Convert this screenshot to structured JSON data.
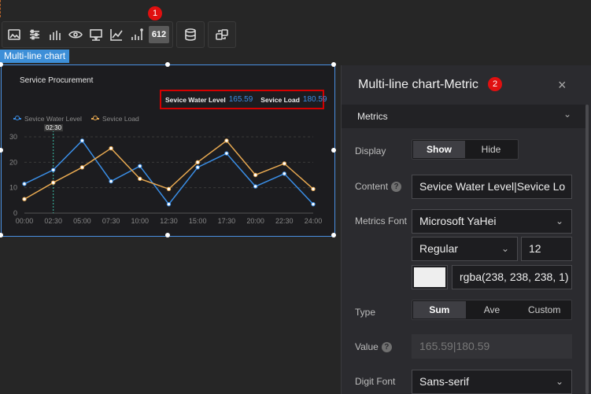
{
  "toolbar": {
    "icons": [
      "image-icon",
      "sliders-icon",
      "bar-chart-icon",
      "eye-icon",
      "tooltip-icon",
      "axis-icon",
      "metric-bars-icon",
      "metric-number-icon",
      "database-icon",
      "interaction-icon"
    ],
    "active_label": "612",
    "badge1": "1"
  },
  "chart": {
    "tag": "Multi-line chart",
    "title": "Service Procurement",
    "metric1_label": "Sevice Water Level",
    "metric1_value": "165.59",
    "metric2_label": "Sevice Load",
    "metric2_value": "180.59",
    "tooltip_time": "02:30"
  },
  "chart_data": {
    "type": "line",
    "title": "Service Procurement",
    "x": [
      "00:00",
      "02:30",
      "05:00",
      "07:30",
      "10:00",
      "12:30",
      "15:00",
      "17:30",
      "20:00",
      "22:30",
      "24:00"
    ],
    "x_points": [
      "00:00",
      "02:30",
      "05:00",
      "07:30",
      "10:00",
      "12:30",
      "15:00",
      "17:30",
      "20:00",
      "22:30",
      "24:00"
    ],
    "ylim": [
      0,
      30
    ],
    "yticks": [
      "0",
      "10",
      "20",
      "30"
    ],
    "grid": true,
    "legend_position": "top-left",
    "series": [
      {
        "name": "Sevice Water Level",
        "color": "#3a8ee6",
        "values": [
          11.5,
          17,
          28.5,
          12.5,
          18.5,
          3.5,
          18,
          23.5,
          10.5,
          15.5,
          3.5
        ]
      },
      {
        "name": "Sevice Load",
        "color": "#e8a951",
        "values": [
          5.5,
          12,
          18,
          25.5,
          13.5,
          9.5,
          20,
          28.5,
          15,
          19.5,
          9.5
        ]
      }
    ]
  },
  "panel": {
    "title": "Multi-line chart-Metric",
    "badge2": "2",
    "close": "×",
    "section_label": "Metrics",
    "display_label": "Display",
    "display_options": [
      "Show",
      "Hide"
    ],
    "content_label": "Content",
    "content_value": "Sevice Water Level|Sevice Lo",
    "metrics_font_label": "Metrics Font",
    "font_family": "Microsoft YaHei",
    "font_weight": "Regular",
    "font_size": "12",
    "color_value": "rgba(238, 238, 238, 1)",
    "type_label": "Type",
    "type_options": [
      "Sum",
      "Ave",
      "Custom"
    ],
    "value_label": "Value",
    "value_value": "165.59|180.59",
    "digit_font_label": "Digit Font",
    "digit_font_value": "Sans-serif"
  }
}
